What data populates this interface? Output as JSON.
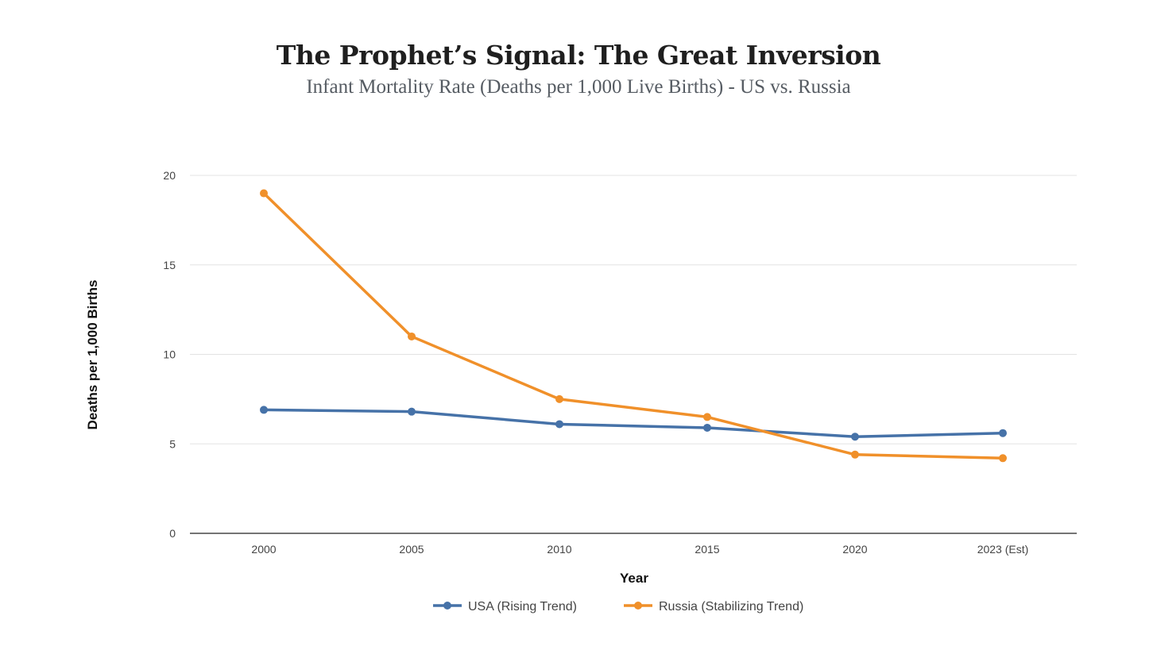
{
  "chart_data": {
    "type": "line",
    "title": "The Prophet’s Signal: The Great Inversion",
    "subtitle": "Infant Mortality Rate (Deaths per 1,000 Live Births) - US vs. Russia",
    "xlabel": "Year",
    "ylabel": "Deaths per 1,000 Births",
    "categories": [
      "2000",
      "2005",
      "2010",
      "2015",
      "2020",
      "2023 (Est)"
    ],
    "ylim": [
      0,
      20
    ],
    "yticks": [
      0,
      5,
      10,
      15,
      20
    ],
    "grid": true,
    "legend_position": "bottom",
    "series": [
      {
        "name": "USA (Rising Trend)",
        "color": "#4672a8",
        "values": [
          6.9,
          6.8,
          6.1,
          5.9,
          5.4,
          5.6
        ]
      },
      {
        "name": "Russia (Stabilizing Trend)",
        "color": "#f0902a",
        "values": [
          19.0,
          11.0,
          7.5,
          6.5,
          4.4,
          4.2
        ]
      }
    ]
  }
}
